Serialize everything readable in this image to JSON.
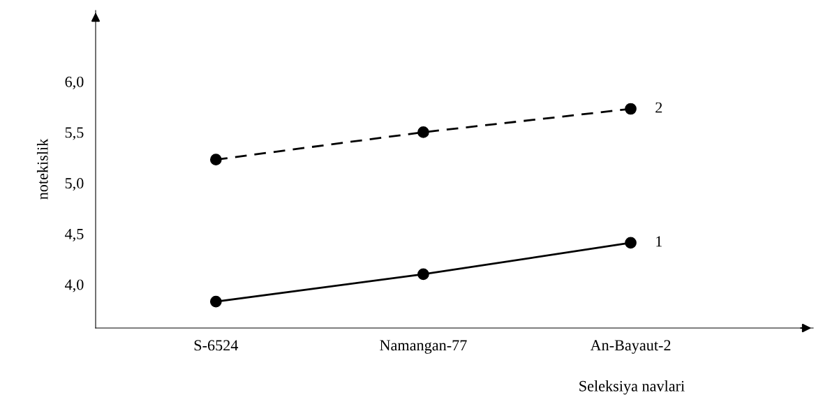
{
  "chart_data": {
    "type": "line",
    "ylabel": "notekislik",
    "xlabel": "Seleksiya navlari",
    "categories": [
      "S-6524",
      "Namangan-77",
      "An-Bayaut-2"
    ],
    "series": [
      {
        "name": "1",
        "color": "#000000",
        "values": [
          3.83,
          4.1,
          4.41
        ],
        "line_style": "solid"
      },
      {
        "name": "2",
        "color": "#000000",
        "values": [
          5.23,
          5.5,
          5.73
        ],
        "line_style": "dashed"
      }
    ],
    "ylim": [
      3.57,
      6.7
    ],
    "yticks": [
      {
        "value": 4.0,
        "label": "4,0"
      },
      {
        "value": 4.5,
        "label": "4,5"
      },
      {
        "value": 5.0,
        "label": "5,0"
      },
      {
        "value": 5.5,
        "label": "5,5"
      },
      {
        "value": 6.0,
        "label": "6,0"
      }
    ],
    "marker": "circle",
    "grid": false,
    "legend": false
  }
}
